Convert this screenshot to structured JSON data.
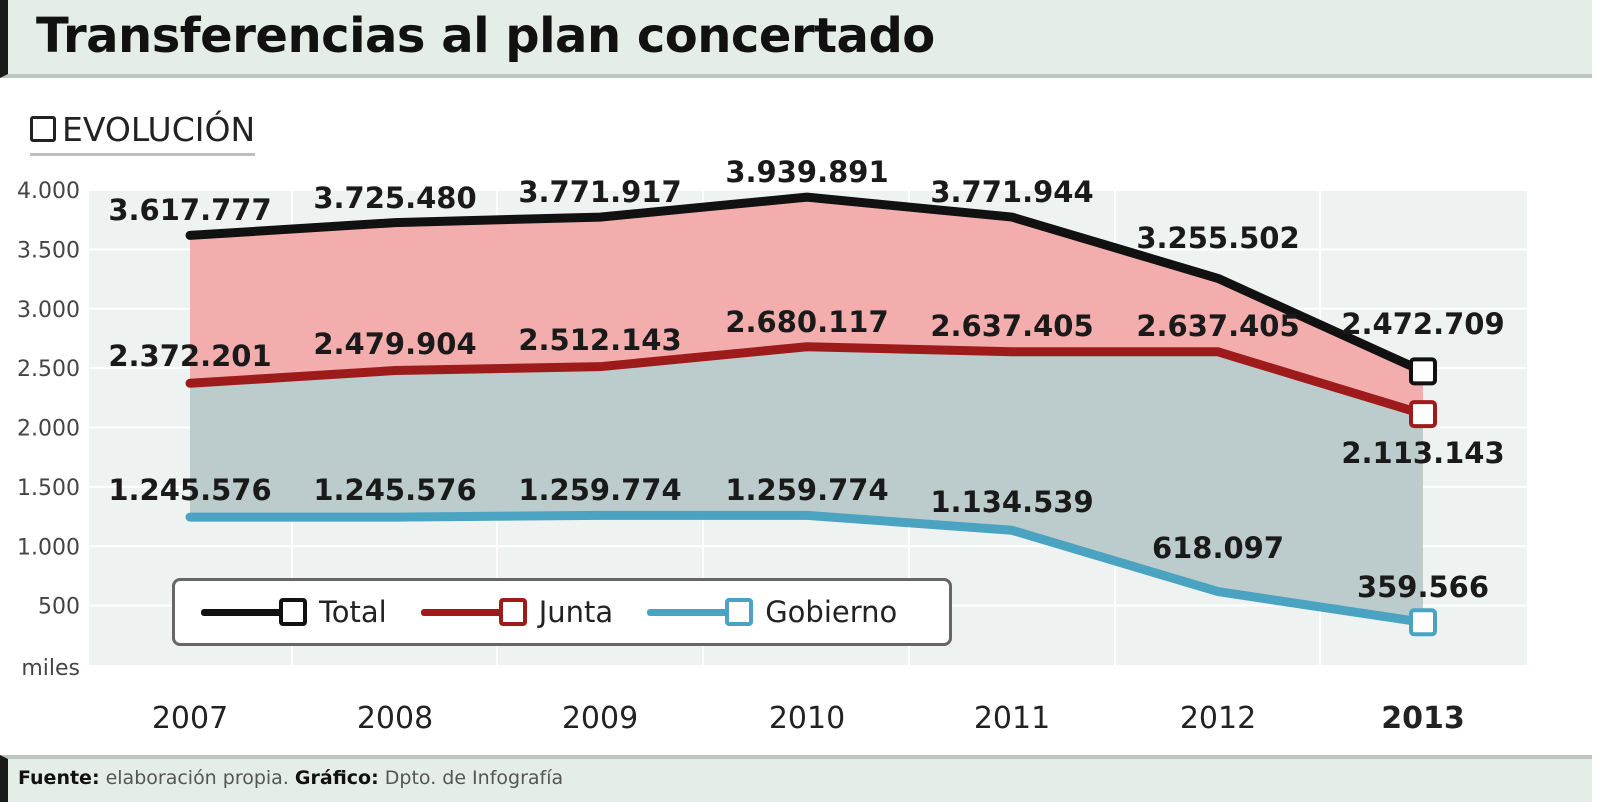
{
  "header": {
    "title": "Transferencias al plan concertado",
    "section_label": "EVOLUCIÓN"
  },
  "footer": {
    "source_label": "Fuente:",
    "source_text": " elaboración propia. ",
    "graphic_label": "Gráfico:",
    "graphic_text": " Dpto. de Infografía"
  },
  "colors": {
    "total": "#111111",
    "junta": "#9e1b1b",
    "gobierno": "#4aa3c0",
    "total_fill": "#f3a9a9",
    "junta_fill": "#b8c9c9"
  },
  "chart_data": {
    "type": "line",
    "categories": [
      "2007",
      "2008",
      "2009",
      "2010",
      "2011",
      "2012",
      "2013"
    ],
    "ylabel": "miles",
    "ylim": [
      0,
      4000
    ],
    "yticks": [
      "500",
      "1.000",
      "1.500",
      "2.000",
      "2.500",
      "3.000",
      "3.500",
      "4.000"
    ],
    "ytick_values": [
      500,
      1000,
      1500,
      2000,
      2500,
      3000,
      3500,
      4000
    ],
    "grid": true,
    "legend_position": "bottom-left",
    "series": [
      {
        "name": "Total",
        "key": "total",
        "values": [
          3617.777,
          3725.48,
          3771.917,
          3939.891,
          3771.944,
          3255.502,
          2472.709
        ],
        "labels": [
          "3.617.777",
          "3.725.480",
          "3.771.917",
          "3.939.891",
          "3.771.944",
          "3.255.502",
          "2.472.709"
        ]
      },
      {
        "name": "Junta",
        "key": "junta",
        "values": [
          2372.201,
          2479.904,
          2512.143,
          2680.117,
          2637.405,
          2637.405,
          2113.143
        ],
        "labels": [
          "2.372.201",
          "2.479.904",
          "2.512.143",
          "2.680.117",
          "2.637.405",
          "2.637.405",
          "2.113.143"
        ]
      },
      {
        "name": "Gobierno",
        "key": "gobierno",
        "values": [
          1245.576,
          1245.576,
          1259.774,
          1259.774,
          1134.539,
          618.097,
          359.566
        ],
        "labels": [
          "1.245.576",
          "1.245.576",
          "1.259.774",
          "1.259.774",
          "1.134.539",
          "618.097",
          "359.566"
        ]
      }
    ]
  }
}
